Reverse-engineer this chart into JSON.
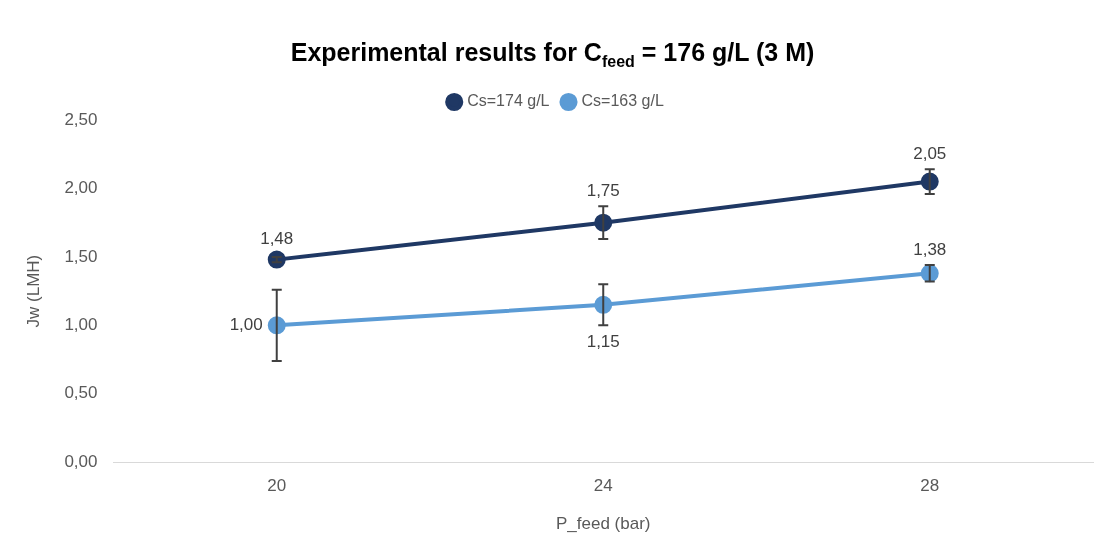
{
  "chart_data": {
    "type": "line",
    "title": "Experimental results for C$_{feed}$ = 176 g/L (3 M)",
    "xlabel": "P_feed (bar)",
    "ylabel": "Jw (LMH)",
    "categories": [
      "20",
      "24",
      "28"
    ],
    "series": [
      {
        "name": "Cs=174 g/L",
        "color": "#1f3864",
        "values": [
          1.48,
          1.75,
          2.05
        ],
        "value_labels": [
          "1,48",
          "1,75",
          "2,05"
        ],
        "errors": [
          0.02,
          0.12,
          0.09
        ]
      },
      {
        "name": "Cs=163 g/L",
        "color": "#5b9bd5",
        "values": [
          1.0,
          1.15,
          1.38
        ],
        "value_labels": [
          "1,00",
          "1,15",
          "1,38"
        ],
        "errors": [
          0.26,
          0.15,
          0.06
        ]
      }
    ],
    "ylim": [
      0,
      2.5
    ],
    "yticks": [
      {
        "value": 0,
        "label": "0,00"
      },
      {
        "value": 0.5,
        "label": "0,50"
      },
      {
        "value": 1,
        "label": "1,00"
      },
      {
        "value": 1.5,
        "label": "1,50"
      },
      {
        "value": 2,
        "label": "2,00"
      },
      {
        "value": 2.5,
        "label": "2,50"
      }
    ],
    "grid": false,
    "legend": "top",
    "marker": "circle",
    "line_style": "solid"
  }
}
